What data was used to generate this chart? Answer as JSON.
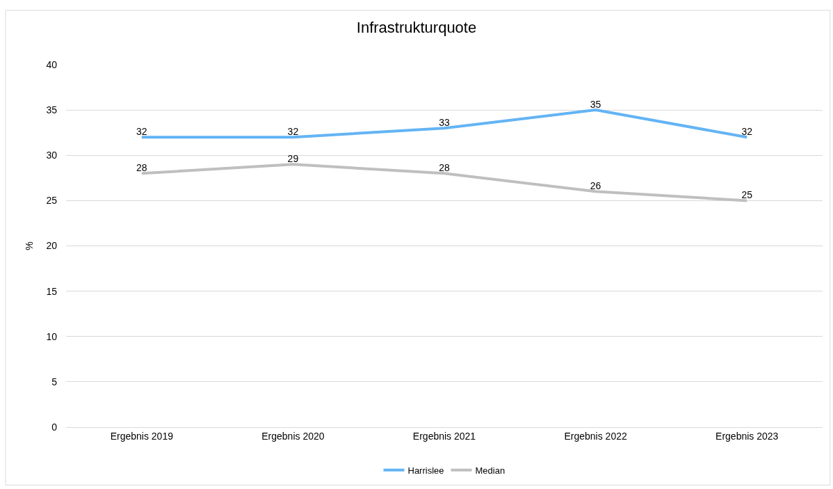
{
  "chart_data": {
    "type": "line",
    "title": "Infrastrukturquote",
    "ylabel": "%",
    "categories": [
      "Ergebnis 2019",
      "Ergebnis 2020",
      "Ergebnis 2021",
      "Ergebnis 2022",
      "Ergebnis 2023"
    ],
    "series": [
      {
        "name": "Harrislee",
        "color": "#63b4f4",
        "values": [
          32,
          32,
          33,
          35,
          32
        ]
      },
      {
        "name": "Median",
        "color": "#bfbfbf",
        "values": [
          28,
          29,
          28,
          26,
          25
        ]
      }
    ],
    "ylim": [
      0,
      40
    ],
    "yticks": [
      0,
      5,
      10,
      15,
      20,
      25,
      30,
      35,
      40
    ],
    "grid": "y",
    "legend": "bottom",
    "data_labels": true,
    "marker": "none",
    "line_style": "solid"
  }
}
